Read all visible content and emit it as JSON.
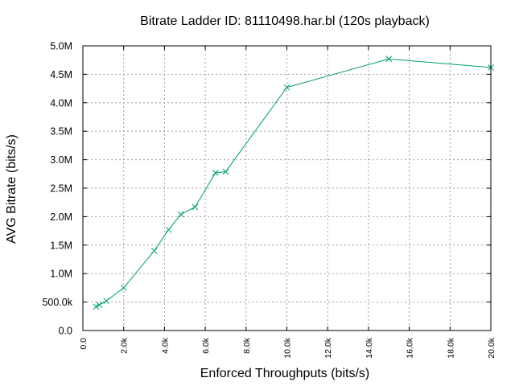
{
  "chart_data": {
    "type": "line",
    "title": "Bitrate Ladder ID: 81110498.har.bl (120s playback)",
    "xlabel": "Enforced Throughputs (bits/s)",
    "ylabel": "AVG Bitrate (bits/s)",
    "xlim": [
      0,
      20000
    ],
    "ylim": [
      0,
      5000000
    ],
    "x_ticks": [
      0,
      2000,
      4000,
      6000,
      8000,
      10000,
      12000,
      14000,
      16000,
      18000,
      20000
    ],
    "x_tick_labels": [
      "0.0",
      "2.0k",
      "4.0k",
      "6.0k",
      "8.0k",
      "10.0k",
      "12.0k",
      "14.0k",
      "16.0k",
      "18.0k",
      "20.0k"
    ],
    "y_ticks": [
      0,
      500000,
      1000000,
      1500000,
      2000000,
      2500000,
      3000000,
      3500000,
      4000000,
      4500000,
      5000000
    ],
    "y_tick_labels": [
      "0.0",
      "500.0k",
      "1.0M",
      "1.5M",
      "2.0M",
      "2.5M",
      "3.0M",
      "3.5M",
      "4.0M",
      "4.5M",
      "5.0M"
    ],
    "grid": true,
    "marker": "x",
    "series_color": "#009e73",
    "x": [
      650,
      800,
      1150,
      2000,
      3500,
      4200,
      4800,
      5500,
      6500,
      7000,
      10000,
      15000,
      20000
    ],
    "y": [
      420000,
      450000,
      520000,
      750000,
      1400000,
      1770000,
      2040000,
      2170000,
      2770000,
      2790000,
      4270000,
      4770000,
      4620000
    ]
  }
}
